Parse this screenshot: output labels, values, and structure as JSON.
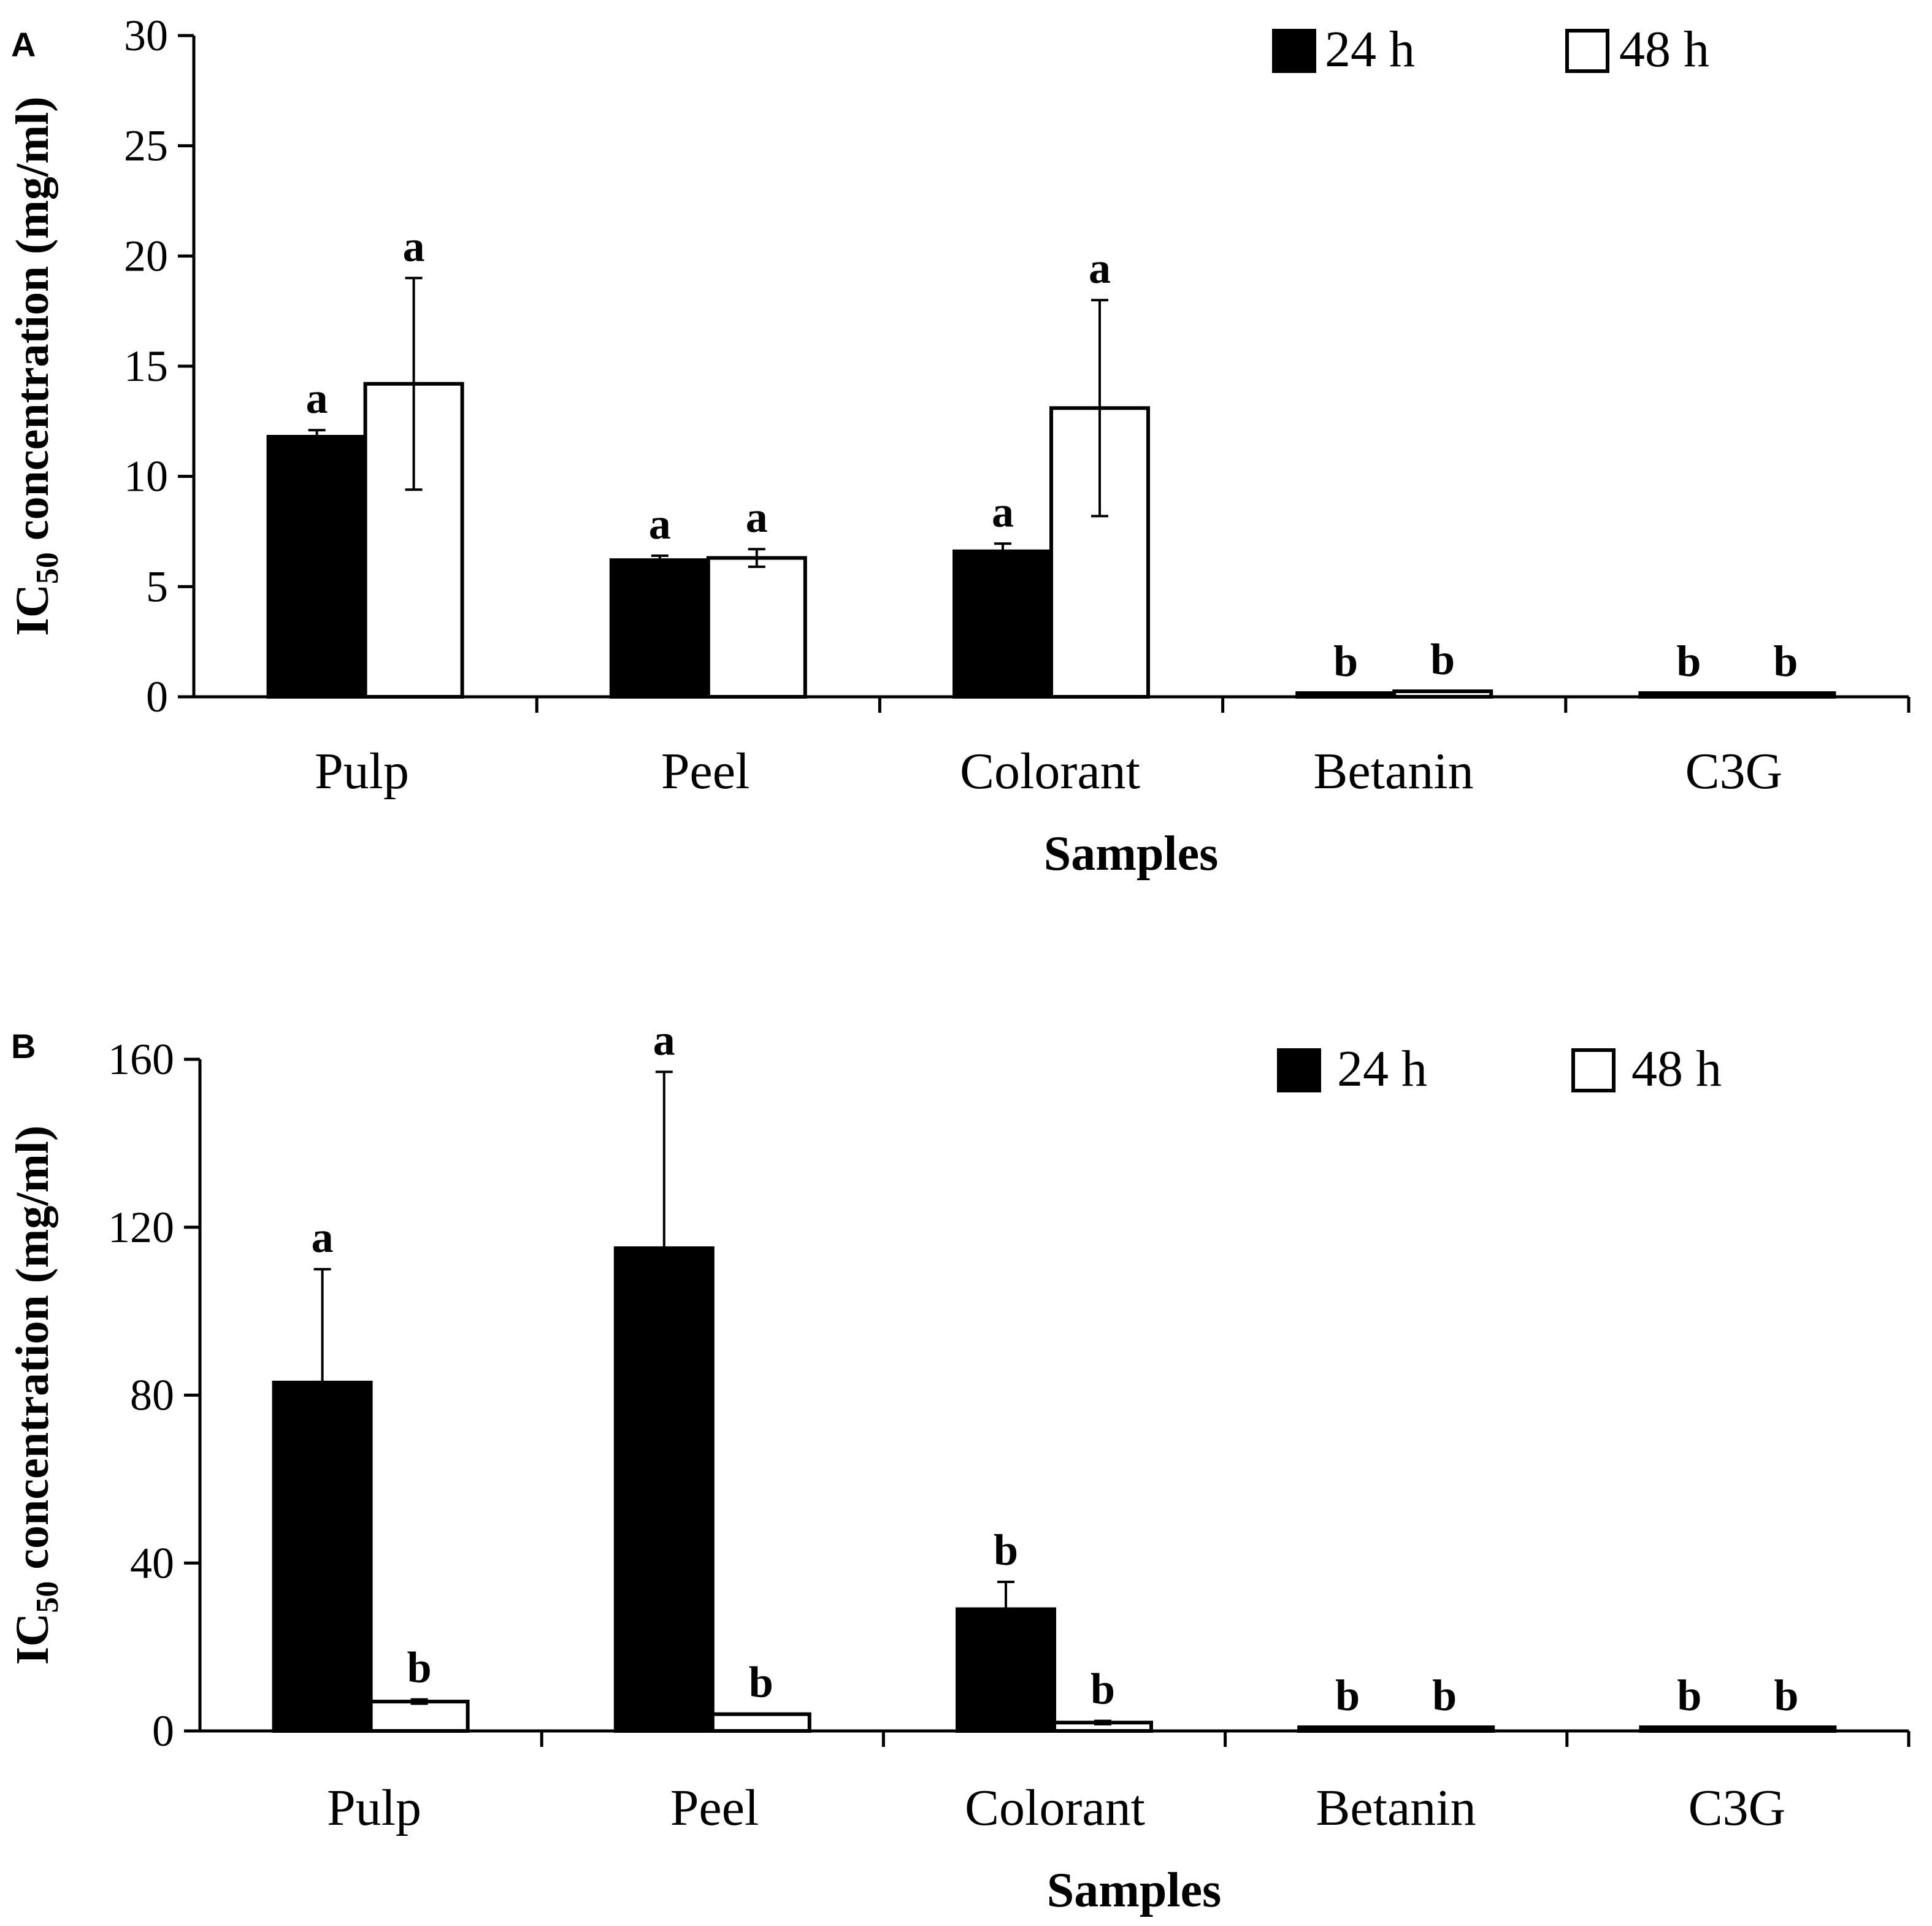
{
  "chart_data": [
    {
      "panel": "A",
      "type": "bar",
      "ylabel_main": "IC",
      "ylabel_sub": "50",
      "ylabel_rest": " concentration (mg/ml)",
      "xlabel": "Samples",
      "categories": [
        "Pulp",
        "Peel",
        "Colorant",
        "Betanin",
        "C3G"
      ],
      "ylim": [
        0,
        30
      ],
      "yticks": [
        0,
        5,
        10,
        15,
        20,
        25,
        30
      ],
      "legend": [
        "24 h",
        "48 h"
      ],
      "legend_position": "top-right",
      "series": [
        {
          "name": "24 h",
          "color": "#000000",
          "values": [
            11.8,
            6.2,
            6.6,
            0.05,
            0.15
          ],
          "errors": [
            0.3,
            0.2,
            0.35,
            0.0,
            0.0
          ],
          "letters": [
            "a",
            "a",
            "a",
            "b",
            "b"
          ]
        },
        {
          "name": "48 h",
          "color": "#ffffff",
          "values": [
            14.2,
            6.3,
            13.1,
            0.25,
            0.1
          ],
          "errors": [
            4.8,
            0.4,
            4.9,
            0.0,
            0.0
          ],
          "letters": [
            "a",
            "a",
            "a",
            "b",
            "b"
          ]
        }
      ]
    },
    {
      "panel": "B",
      "type": "bar",
      "ylabel_main": "IC",
      "ylabel_sub": "50",
      "ylabel_rest": " concentration (mg/ml)",
      "xlabel": "Samples",
      "categories": [
        "Pulp",
        "Peel",
        "Colorant",
        "Betanin",
        "C3G"
      ],
      "ylim": [
        0,
        160
      ],
      "yticks": [
        0,
        40,
        80,
        120,
        160
      ],
      "legend": [
        "24 h",
        "48 h"
      ],
      "legend_position": "top-right",
      "series": [
        {
          "name": "24 h",
          "color": "#000000",
          "values": [
            83,
            115,
            29,
            0.2,
            0.2
          ],
          "errors": [
            27,
            42,
            6.5,
            0.0,
            0.0
          ],
          "letters": [
            "a",
            "a",
            "b",
            "b",
            "b"
          ]
        },
        {
          "name": "48 h",
          "color": "#ffffff",
          "values": [
            7,
            4,
            2,
            0.3,
            0.3
          ],
          "errors": [
            0.5,
            0.0,
            0.4,
            0.0,
            0.0
          ],
          "letters": [
            "b",
            "b",
            "b",
            "b",
            "b"
          ]
        }
      ]
    }
  ]
}
